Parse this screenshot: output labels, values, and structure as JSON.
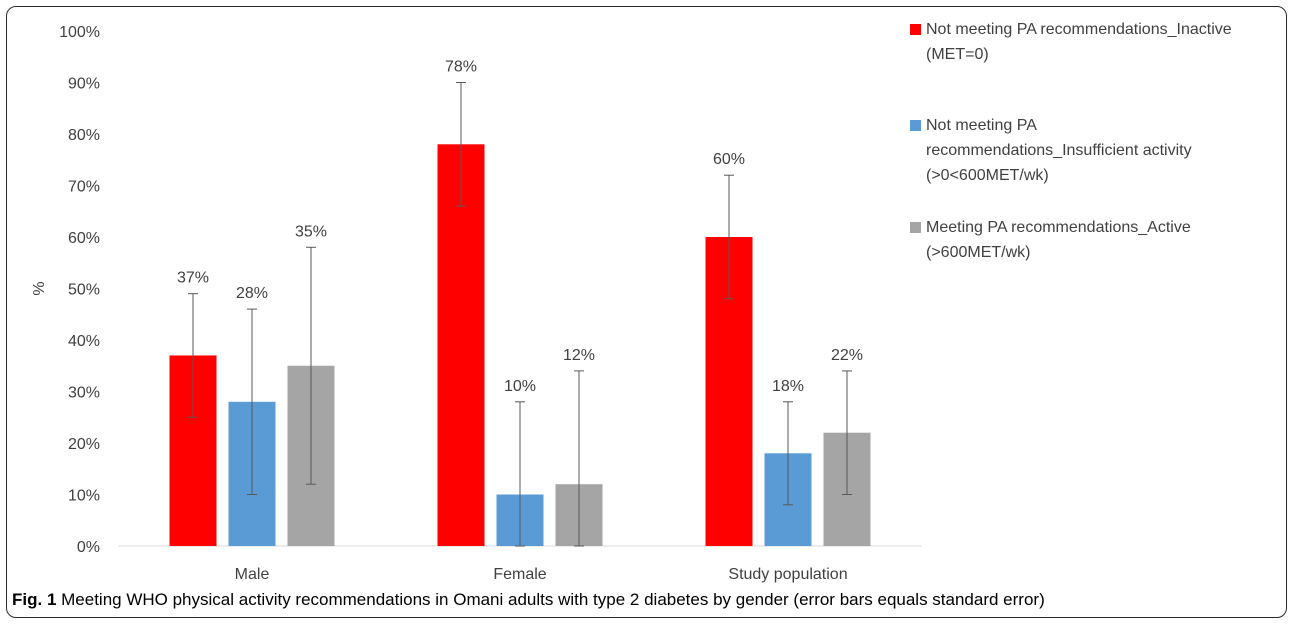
{
  "chart_data": {
    "type": "bar",
    "categories": [
      "Male",
      "Female",
      "Study population"
    ],
    "ylabel": "%",
    "ylim": [
      0,
      100
    ],
    "yticks": [
      0,
      10,
      20,
      30,
      40,
      50,
      60,
      70,
      80,
      90,
      100
    ],
    "ytick_suffix": "%",
    "series": [
      {
        "name": "Not meeting PA recommendations_Inactive (MET=0)",
        "legend_lines": [
          "Not meeting PA recommendations_Inactive",
          "(MET=0)"
        ],
        "color": "#ff0000",
        "values": [
          37,
          78,
          60
        ],
        "errors": [
          12,
          12,
          12
        ]
      },
      {
        "name": "Not meeting PA recommendations_Insufficient activity (>0<600MET/wk)",
        "legend_lines": [
          "Not meeting PA",
          "recommendations_Insufficient activity",
          "(>0<600MET/wk)"
        ],
        "color": "#5b9bd5",
        "values": [
          28,
          10,
          18
        ],
        "errors": [
          18,
          18,
          10
        ]
      },
      {
        "name": "Meeting PA recommendations_Active (>600MET/wk)",
        "legend_lines": [
          "Meeting PA recommendations_Active",
          "(>600MET/wk)"
        ],
        "color": "#a5a5a5",
        "values": [
          35,
          12,
          22
        ],
        "errors": [
          23,
          22,
          12
        ]
      }
    ],
    "data_labels": [
      [
        "37%",
        "78%",
        "60%"
      ],
      [
        "28%",
        "10%",
        "18%"
      ],
      [
        "35%",
        "12%",
        "22%"
      ]
    ],
    "legend_position": "right",
    "grid": false
  },
  "caption": {
    "label": "Fig. 1",
    "text": " Meeting WHO physical activity recommendations in Omani adults with type 2 diabetes by gender (error bars equals standard error)"
  }
}
